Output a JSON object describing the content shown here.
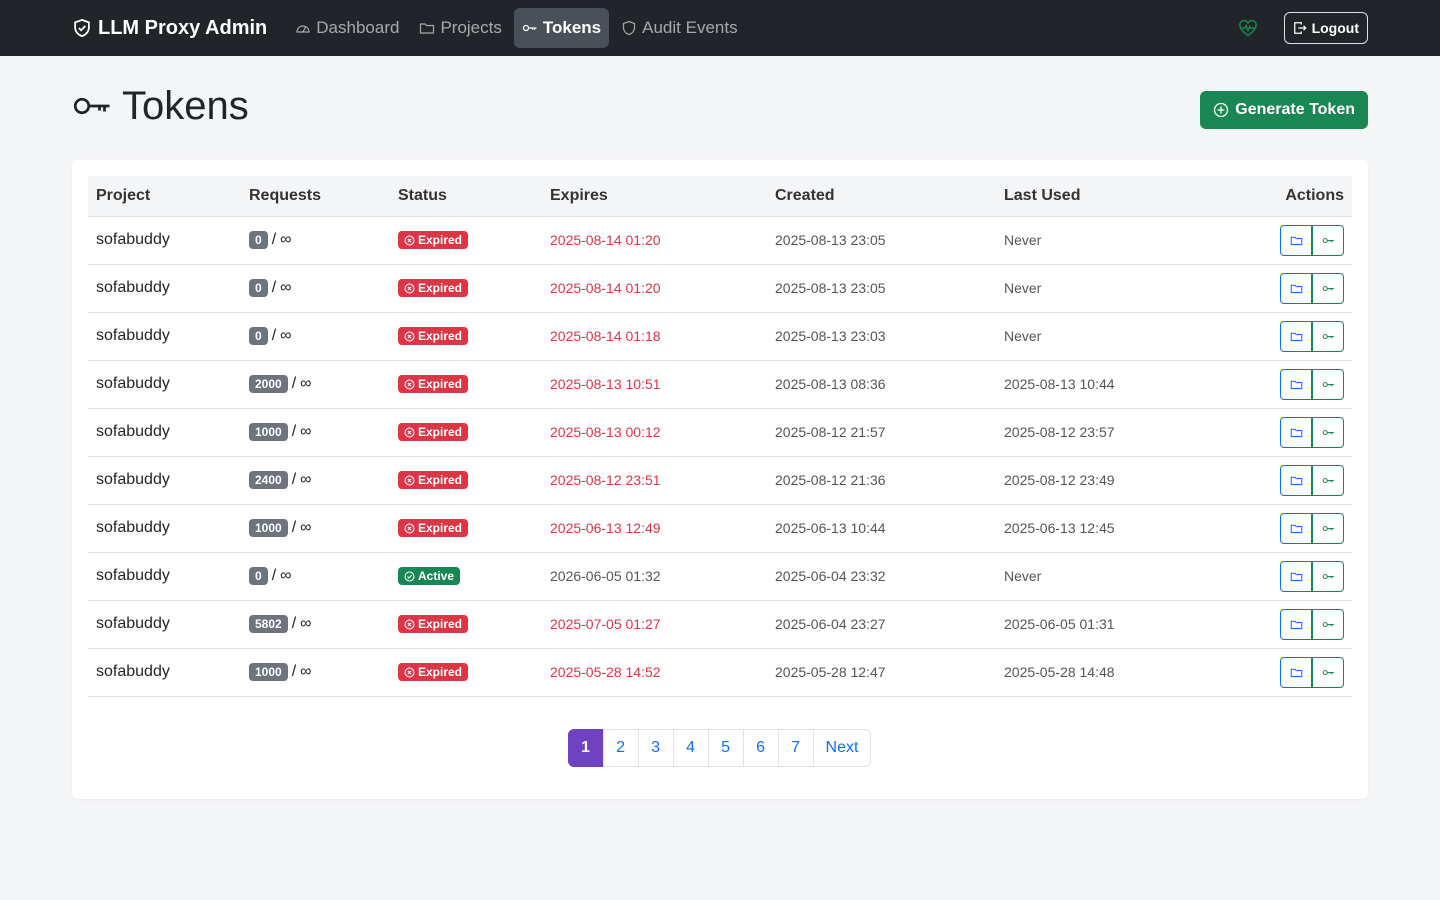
{
  "app": {
    "brand": "LLM Proxy Admin",
    "nav": [
      {
        "label": "Dashboard",
        "icon": "speedometer-icon",
        "active": false
      },
      {
        "label": "Projects",
        "icon": "folder-icon",
        "active": false
      },
      {
        "label": "Tokens",
        "icon": "key-icon",
        "active": true
      },
      {
        "label": "Audit Events",
        "icon": "shield-icon",
        "active": false
      }
    ],
    "logout_label": "Logout"
  },
  "page": {
    "title": "Tokens",
    "generate_label": "Generate Token"
  },
  "table": {
    "headers": [
      "Project",
      "Requests",
      "Status",
      "Expires",
      "Created",
      "Last Used",
      "Actions"
    ],
    "rows": [
      {
        "project": "sofabuddy",
        "count": "0",
        "limit": "∞",
        "status": "Expired",
        "expires": "2025-08-14 01:20",
        "created": "2025-08-13 23:05",
        "last_used": "Never"
      },
      {
        "project": "sofabuddy",
        "count": "0",
        "limit": "∞",
        "status": "Expired",
        "expires": "2025-08-14 01:20",
        "created": "2025-08-13 23:05",
        "last_used": "Never"
      },
      {
        "project": "sofabuddy",
        "count": "0",
        "limit": "∞",
        "status": "Expired",
        "expires": "2025-08-14 01:18",
        "created": "2025-08-13 23:03",
        "last_used": "Never"
      },
      {
        "project": "sofabuddy",
        "count": "2000",
        "limit": "∞",
        "status": "Expired",
        "expires": "2025-08-13 10:51",
        "created": "2025-08-13 08:36",
        "last_used": "2025-08-13 10:44"
      },
      {
        "project": "sofabuddy",
        "count": "1000",
        "limit": "∞",
        "status": "Expired",
        "expires": "2025-08-13 00:12",
        "created": "2025-08-12 21:57",
        "last_used": "2025-08-12 23:57"
      },
      {
        "project": "sofabuddy",
        "count": "2400",
        "limit": "∞",
        "status": "Expired",
        "expires": "2025-08-12 23:51",
        "created": "2025-08-12 21:36",
        "last_used": "2025-08-12 23:49"
      },
      {
        "project": "sofabuddy",
        "count": "1000",
        "limit": "∞",
        "status": "Expired",
        "expires": "2025-06-13 12:49",
        "created": "2025-06-13 10:44",
        "last_used": "2025-06-13 12:45"
      },
      {
        "project": "sofabuddy",
        "count": "0",
        "limit": "∞",
        "status": "Active",
        "expires": "2026-06-05 01:32",
        "created": "2025-06-04 23:32",
        "last_used": "Never"
      },
      {
        "project": "sofabuddy",
        "count": "5802",
        "limit": "∞",
        "status": "Expired",
        "expires": "2025-07-05 01:27",
        "created": "2025-06-04 23:27",
        "last_used": "2025-06-05 01:31"
      },
      {
        "project": "sofabuddy",
        "count": "1000",
        "limit": "∞",
        "status": "Expired",
        "expires": "2025-05-28 14:52",
        "created": "2025-05-28 12:47",
        "last_used": "2025-05-28 14:48"
      }
    ]
  },
  "pagination": {
    "pages": [
      "1",
      "2",
      "3",
      "4",
      "5",
      "6",
      "7"
    ],
    "current": "1",
    "next_label": "Next"
  },
  "colors": {
    "navbar": "#212529",
    "success": "#198754",
    "danger": "#dc3545",
    "primary": "#0d6efd",
    "current_page": "#6f42c1"
  }
}
